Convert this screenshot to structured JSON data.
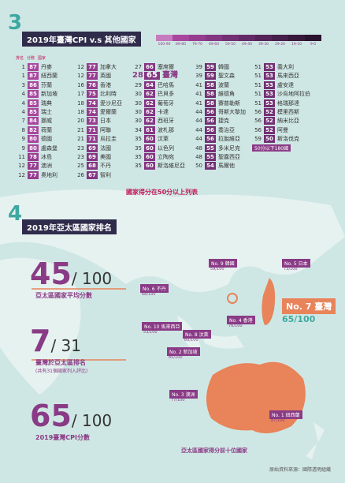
{
  "section3": {
    "number": "3",
    "title": "2019年臺灣CPI v.s 其他國家",
    "legend": [
      {
        "label": "100-90",
        "color": "#c77bbf"
      },
      {
        "label": "89-80",
        "color": "#a9479f"
      },
      {
        "label": "79-70",
        "color": "#963d90"
      },
      {
        "label": "69-60",
        "color": "#843683"
      },
      {
        "label": "59-50",
        "color": "#733074"
      },
      {
        "label": "49-40",
        "color": "#632a66"
      },
      {
        "label": "39-30",
        "color": "#542458"
      },
      {
        "label": "29-20",
        "color": "#461f4a"
      },
      {
        "label": "19-10",
        "color": "#38193c"
      },
      {
        "label": "9-0",
        "color": "#2a132e"
      }
    ],
    "header": [
      "排名",
      "分數",
      "國家"
    ],
    "columns": [
      [
        {
          "rank": 1,
          "score": 87,
          "name": "丹麥"
        },
        {
          "rank": 1,
          "score": 87,
          "name": "紐西蘭"
        },
        {
          "rank": 3,
          "score": 86,
          "name": "芬蘭"
        },
        {
          "rank": 4,
          "score": 85,
          "name": "新加坡"
        },
        {
          "rank": 4,
          "score": 85,
          "name": "瑞典"
        },
        {
          "rank": 4,
          "score": 85,
          "name": "瑞士"
        },
        {
          "rank": 7,
          "score": 84,
          "name": "挪威"
        },
        {
          "rank": 8,
          "score": 82,
          "name": "荷蘭"
        },
        {
          "rank": 9,
          "score": 80,
          "name": "德國"
        },
        {
          "rank": 9,
          "score": 80,
          "name": "盧森堡"
        },
        {
          "rank": 11,
          "score": 78,
          "name": "冰島"
        },
        {
          "rank": 12,
          "score": 77,
          "name": "澳洲"
        },
        {
          "rank": 12,
          "score": 77,
          "name": "奧地利"
        }
      ],
      [
        {
          "rank": 12,
          "score": 77,
          "name": "加拿大"
        },
        {
          "rank": 12,
          "score": 77,
          "name": "英國"
        },
        {
          "rank": 16,
          "score": 76,
          "name": "香港"
        },
        {
          "rank": 17,
          "score": 75,
          "name": "比利時"
        },
        {
          "rank": 18,
          "score": 74,
          "name": "愛沙尼亞"
        },
        {
          "rank": 18,
          "score": 74,
          "name": "愛爾蘭"
        },
        {
          "rank": 20,
          "score": 73,
          "name": "日本"
        },
        {
          "rank": 21,
          "score": 71,
          "name": "阿聯"
        },
        {
          "rank": 21,
          "score": 71,
          "name": "烏拉圭"
        },
        {
          "rank": 23,
          "score": 69,
          "name": "法國"
        },
        {
          "rank": 23,
          "score": 69,
          "name": "美國"
        },
        {
          "rank": 25,
          "score": 68,
          "name": "不丹"
        },
        {
          "rank": 26,
          "score": 67,
          "name": "智利"
        }
      ],
      [
        {
          "rank": 27,
          "score": 66,
          "name": "塞席爾"
        },
        {
          "rank": 28,
          "score": 65,
          "name": "臺灣",
          "highlight": true
        },
        {
          "rank": 29,
          "score": 64,
          "name": "巴哈馬"
        },
        {
          "rank": 30,
          "score": 62,
          "name": "巴貝多"
        },
        {
          "rank": 30,
          "score": 62,
          "name": "葡萄牙"
        },
        {
          "rank": 30,
          "score": 62,
          "name": "卡達"
        },
        {
          "rank": 30,
          "score": 62,
          "name": "西班牙"
        },
        {
          "rank": 34,
          "score": 61,
          "name": "波札那"
        },
        {
          "rank": 35,
          "score": 60,
          "name": "汶萊"
        },
        {
          "rank": 35,
          "score": 60,
          "name": "以色列"
        },
        {
          "rank": 35,
          "score": 60,
          "name": "立陶宛"
        },
        {
          "rank": 35,
          "score": 60,
          "name": "斯洛維尼亞"
        }
      ],
      [
        {
          "rank": 39,
          "score": 59,
          "name": "韓國"
        },
        {
          "rank": 39,
          "score": 59,
          "name": "聖文森"
        },
        {
          "rank": 41,
          "score": 58,
          "name": "波蘭"
        },
        {
          "rank": 41,
          "score": 58,
          "name": "維德角"
        },
        {
          "rank": 41,
          "score": 58,
          "name": "賽普勒斯"
        },
        {
          "rank": 44,
          "score": 56,
          "name": "哥斯大黎加"
        },
        {
          "rank": 44,
          "score": 56,
          "name": "捷克"
        },
        {
          "rank": 44,
          "score": 56,
          "name": "喬治亞"
        },
        {
          "rank": 44,
          "score": 56,
          "name": "拉脫維亞"
        },
        {
          "rank": 48,
          "score": 55,
          "name": "多米尼克"
        },
        {
          "rank": 48,
          "score": 55,
          "name": "聖露西亞"
        },
        {
          "rank": 50,
          "score": 54,
          "name": "馬爾他"
        }
      ],
      [
        {
          "rank": 51,
          "score": 53,
          "name": "義大利"
        },
        {
          "rank": 51,
          "score": 53,
          "name": "馬來西亞"
        },
        {
          "rank": 51,
          "score": 53,
          "name": "盧安達"
        },
        {
          "rank": 51,
          "score": 53,
          "name": "沙烏地阿拉伯"
        },
        {
          "rank": 51,
          "score": 53,
          "name": "格瑞那達"
        },
        {
          "rank": 56,
          "score": 52,
          "name": "模里西斯"
        },
        {
          "rank": 56,
          "score": 52,
          "name": "納米比亞"
        },
        {
          "rank": 56,
          "score": 52,
          "name": "阿曼"
        },
        {
          "rank": 59,
          "score": 50,
          "name": "斯洛伐克"
        }
      ]
    ],
    "below50": "50分以下180國",
    "note": "國家得分在50分以上列表"
  },
  "section4": {
    "number": "4",
    "title": "2019年亞太區國家排名",
    "stats": [
      {
        "value": "45",
        "total": "/ 100",
        "label": "亞太區國家平均分數"
      },
      {
        "value": "7",
        "total": "/ 31",
        "label": "臺灣於亞太區排名",
        "sublabel": "(共有31個國家列入評比)"
      },
      {
        "value": "65",
        "total": "/ 100",
        "label": "2019臺灣CPI分數"
      }
    ],
    "map_labels": [
      {
        "rank": "No. 5",
        "name": "日本",
        "score": "73/100"
      },
      {
        "rank": "No. 9",
        "name": "韓國",
        "score": "59/100"
      },
      {
        "rank": "No. 6",
        "name": "不丹",
        "score": "68/100"
      },
      {
        "rank": "No. 4",
        "name": "香港",
        "score": "76/100"
      },
      {
        "rank": "No. 10",
        "name": "馬來西亞",
        "score": "53/100"
      },
      {
        "rank": "No. 8",
        "name": "汶萊",
        "score": "60/100"
      },
      {
        "rank": "No. 2",
        "name": "新加坡",
        "score": "85/100"
      },
      {
        "rank": "No. 3",
        "name": "澳洲",
        "score": "77/100"
      },
      {
        "rank": "No. 1",
        "name": "紐西蘭",
        "score": "87/100"
      }
    ],
    "taiwan": {
      "rank": "No. 7",
      "name": "臺灣",
      "score": "65/100"
    },
    "caption": "亞太區國家得分前十位國家"
  },
  "source": "原始資料來源：國際透明組織"
}
